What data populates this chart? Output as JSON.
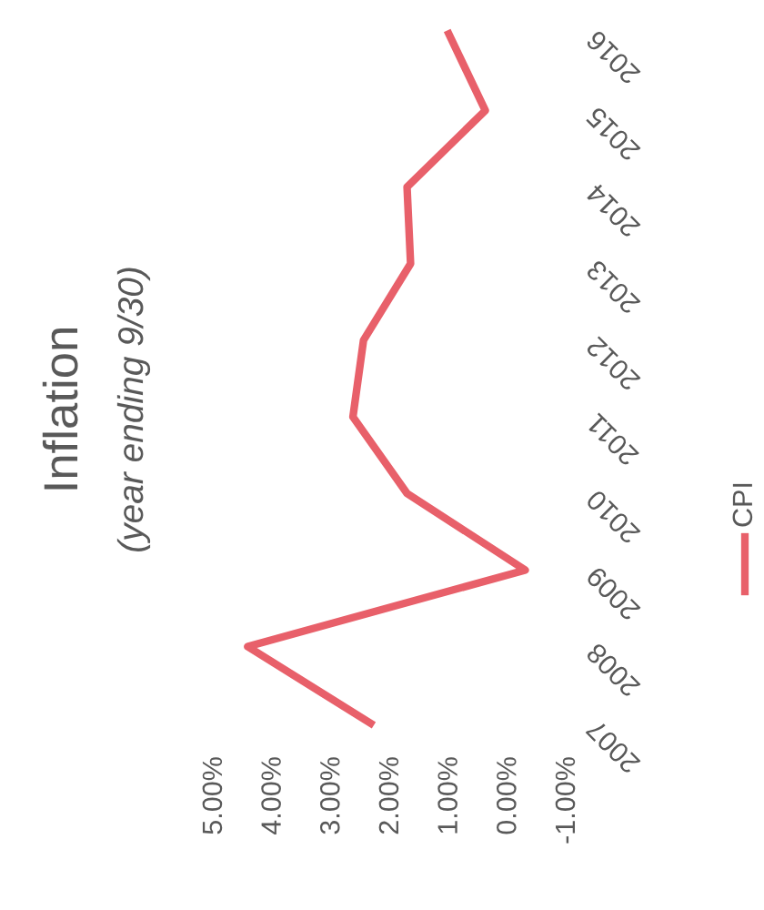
{
  "chart_data": {
    "type": "line",
    "title": "Inflation",
    "subtitle": "(year ending 9/30)",
    "orientation": "horizontal",
    "categories": [
      "2016",
      "2015",
      "2014",
      "2013",
      "2012",
      "2011",
      "2010",
      "2009",
      "2008",
      "2007"
    ],
    "series": [
      {
        "name": "CPI",
        "color": "#e8606a",
        "values": [
          1.02,
          0.4,
          1.73,
          1.67,
          2.47,
          2.65,
          1.73,
          -0.28,
          4.44,
          2.35
        ]
      }
    ],
    "xlim": [
      5,
      -1
    ],
    "xticks": [
      {
        "value": 5,
        "label": "5.00%"
      },
      {
        "value": 4,
        "label": "4.00%"
      },
      {
        "value": 3,
        "label": "3.00%"
      },
      {
        "value": 2,
        "label": "2.00%"
      },
      {
        "value": 1,
        "label": "1.00%"
      },
      {
        "value": 0,
        "label": "0.00%"
      },
      {
        "value": -1,
        "label": "-1.00%"
      }
    ],
    "legend": "right",
    "grid": false
  }
}
